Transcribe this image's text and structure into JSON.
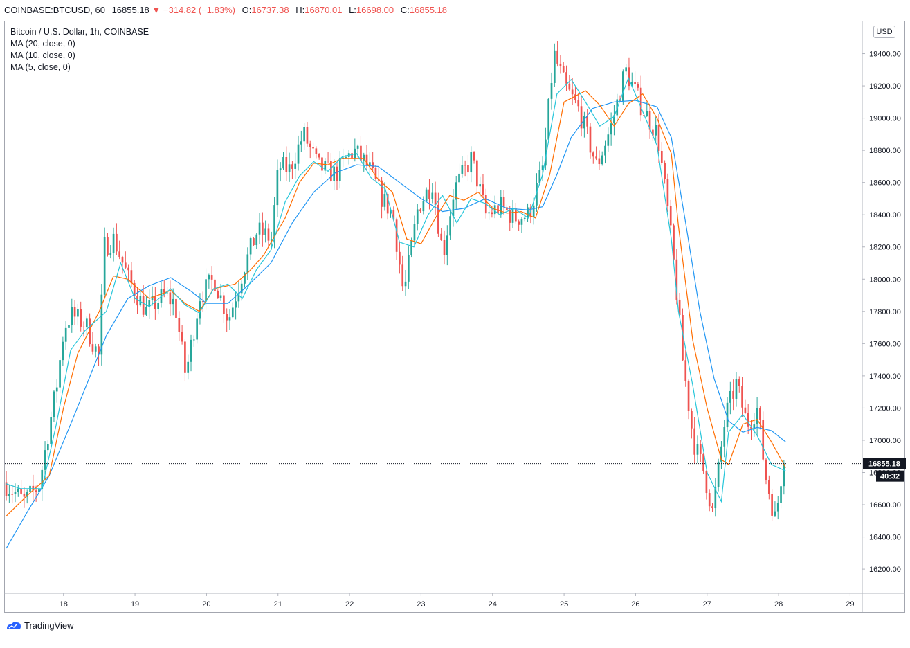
{
  "header": {
    "symbol": "COINBASE:BTCUSD, 60",
    "last": "16855.18",
    "change": "−314.82 (−1.83%)",
    "o_label": "O:",
    "o": "16737.38",
    "h_label": "H:",
    "h": "16870.01",
    "l_label": "L:",
    "l": "16698.00",
    "c_label": "C:",
    "c": "16855.18"
  },
  "legend": {
    "title": "Bitcoin / U.S. Dollar, 1h, COINBASE",
    "ma20": "MA (20, close, 0)",
    "ma10": "MA (10, close, 0)",
    "ma5": "MA (5, close, 0)"
  },
  "currency_badge": "USD",
  "price_label": "16855.18",
  "countdown": "40:32",
  "brand": "TradingView",
  "colors": {
    "up": "#26a69a",
    "down": "#ef5350",
    "ma20": "#2196f3",
    "ma10": "#ff6d00",
    "ma5": "#26c6da",
    "grid": "#f0f3fa",
    "axis": "#b2b5be"
  },
  "chart_data": {
    "type": "candlestick",
    "title": "Bitcoin / U.S. Dollar, 1h, COINBASE",
    "interval": "1h",
    "ylim": [
      16050,
      19600
    ],
    "y_ticks": [
      16200,
      16400,
      16600,
      16800,
      17000,
      17200,
      17400,
      17600,
      17800,
      18000,
      18200,
      18400,
      18600,
      18800,
      19000,
      19200,
      19400,
      19600
    ],
    "x_ticks": [
      "18",
      "19",
      "20",
      "21",
      "22",
      "23",
      "24",
      "25",
      "26",
      "27",
      "28",
      "29"
    ],
    "x_range_days": [
      17.18,
      29.17
    ],
    "current_price": 16855.18,
    "ma_series": [
      {
        "name": "MA (20, close, 0)",
        "color": "#2196f3",
        "points": [
          [
            17.2,
            16330
          ],
          [
            17.5,
            16560
          ],
          [
            17.8,
            16780
          ],
          [
            18.1,
            17100
          ],
          [
            18.4,
            17430
          ],
          [
            18.6,
            17650
          ],
          [
            18.9,
            17880
          ],
          [
            19.2,
            17960
          ],
          [
            19.5,
            18010
          ],
          [
            19.8,
            17920
          ],
          [
            20.0,
            17850
          ],
          [
            20.3,
            17850
          ],
          [
            20.6,
            17970
          ],
          [
            20.9,
            18100
          ],
          [
            21.2,
            18350
          ],
          [
            21.5,
            18540
          ],
          [
            21.8,
            18660
          ],
          [
            22.1,
            18710
          ],
          [
            22.4,
            18700
          ],
          [
            22.7,
            18600
          ],
          [
            23.0,
            18500
          ],
          [
            23.3,
            18420
          ],
          [
            23.6,
            18440
          ],
          [
            23.9,
            18500
          ],
          [
            24.2,
            18440
          ],
          [
            24.5,
            18430
          ],
          [
            24.7,
            18450
          ],
          [
            24.9,
            18650
          ],
          [
            25.1,
            18880
          ],
          [
            25.4,
            19060
          ],
          [
            25.7,
            19100
          ],
          [
            26.0,
            19110
          ],
          [
            26.3,
            19070
          ],
          [
            26.5,
            18880
          ],
          [
            26.7,
            18350
          ],
          [
            26.9,
            17800
          ],
          [
            27.1,
            17380
          ],
          [
            27.3,
            17120
          ],
          [
            27.5,
            17050
          ],
          [
            27.7,
            17080
          ],
          [
            27.9,
            17060
          ],
          [
            28.1,
            16990
          ]
        ]
      },
      {
        "name": "MA (10, close, 0)",
        "color": "#ff6d00",
        "points": [
          [
            17.2,
            16530
          ],
          [
            17.5,
            16660
          ],
          [
            17.8,
            16780
          ],
          [
            18.0,
            17200
          ],
          [
            18.2,
            17540
          ],
          [
            18.5,
            17800
          ],
          [
            18.7,
            18020
          ],
          [
            18.9,
            18000
          ],
          [
            19.2,
            17880
          ],
          [
            19.5,
            17930
          ],
          [
            19.7,
            17850
          ],
          [
            19.9,
            17800
          ],
          [
            20.1,
            17940
          ],
          [
            20.4,
            17970
          ],
          [
            20.6,
            18050
          ],
          [
            20.8,
            18150
          ],
          [
            21.1,
            18380
          ],
          [
            21.3,
            18600
          ],
          [
            21.5,
            18720
          ],
          [
            21.7,
            18710
          ],
          [
            21.9,
            18750
          ],
          [
            22.2,
            18750
          ],
          [
            22.4,
            18620
          ],
          [
            22.6,
            18540
          ],
          [
            22.8,
            18250
          ],
          [
            23.0,
            18220
          ],
          [
            23.2,
            18380
          ],
          [
            23.4,
            18520
          ],
          [
            23.6,
            18490
          ],
          [
            23.8,
            18540
          ],
          [
            24.0,
            18440
          ],
          [
            24.2,
            18410
          ],
          [
            24.4,
            18420
          ],
          [
            24.6,
            18380
          ],
          [
            24.8,
            18650
          ],
          [
            25.0,
            19100
          ],
          [
            25.3,
            19170
          ],
          [
            25.5,
            19080
          ],
          [
            25.7,
            18950
          ],
          [
            25.9,
            19090
          ],
          [
            26.1,
            19150
          ],
          [
            26.3,
            19000
          ],
          [
            26.5,
            18780
          ],
          [
            26.6,
            18330
          ],
          [
            26.8,
            17620
          ],
          [
            27.0,
            17200
          ],
          [
            27.2,
            16880
          ],
          [
            27.3,
            16850
          ],
          [
            27.5,
            17100
          ],
          [
            27.7,
            17130
          ],
          [
            27.9,
            16990
          ],
          [
            28.1,
            16830
          ]
        ]
      },
      {
        "name": "MA (5, close, 0)",
        "color": "#26c6da",
        "points": [
          [
            17.2,
            16730
          ],
          [
            17.4,
            16700
          ],
          [
            17.7,
            16700
          ],
          [
            17.9,
            17100
          ],
          [
            18.1,
            17560
          ],
          [
            18.3,
            17680
          ],
          [
            18.6,
            17800
          ],
          [
            18.8,
            18100
          ],
          [
            19.0,
            17880
          ],
          [
            19.2,
            17830
          ],
          [
            19.5,
            17940
          ],
          [
            19.7,
            17840
          ],
          [
            19.9,
            17790
          ],
          [
            20.1,
            17940
          ],
          [
            20.3,
            17970
          ],
          [
            20.5,
            17880
          ],
          [
            20.7,
            18060
          ],
          [
            20.9,
            18180
          ],
          [
            21.1,
            18480
          ],
          [
            21.3,
            18640
          ],
          [
            21.5,
            18730
          ],
          [
            21.7,
            18670
          ],
          [
            21.9,
            18760
          ],
          [
            22.1,
            18780
          ],
          [
            22.3,
            18630
          ],
          [
            22.5,
            18560
          ],
          [
            22.7,
            18230
          ],
          [
            22.9,
            18200
          ],
          [
            23.1,
            18400
          ],
          [
            23.3,
            18520
          ],
          [
            23.5,
            18350
          ],
          [
            23.7,
            18500
          ],
          [
            23.9,
            18470
          ],
          [
            24.1,
            18400
          ],
          [
            24.3,
            18440
          ],
          [
            24.5,
            18380
          ],
          [
            24.7,
            18650
          ],
          [
            24.9,
            19150
          ],
          [
            25.1,
            19240
          ],
          [
            25.3,
            19100
          ],
          [
            25.5,
            18950
          ],
          [
            25.7,
            19010
          ],
          [
            25.9,
            19250
          ],
          [
            26.1,
            19040
          ],
          [
            26.3,
            18830
          ],
          [
            26.5,
            18250
          ],
          [
            26.6,
            17800
          ],
          [
            26.8,
            17340
          ],
          [
            27.0,
            16800
          ],
          [
            27.2,
            16620
          ],
          [
            27.3,
            17050
          ],
          [
            27.5,
            17160
          ],
          [
            27.7,
            17030
          ],
          [
            27.9,
            16850
          ],
          [
            28.1,
            16810
          ]
        ]
      }
    ],
    "ohlc_anchors": [
      [
        17.2,
        16740
      ],
      [
        17.5,
        16620
      ],
      [
        17.7,
        16720
      ],
      [
        17.85,
        17100
      ],
      [
        17.95,
        17350
      ],
      [
        18.05,
        17700
      ],
      [
        18.15,
        17780
      ],
      [
        18.35,
        17720
      ],
      [
        18.55,
        17500
      ],
      [
        18.6,
        18200
      ],
      [
        18.75,
        18250
      ],
      [
        18.95,
        18000
      ],
      [
        19.2,
        17800
      ],
      [
        19.45,
        17900
      ],
      [
        19.6,
        17850
      ],
      [
        19.75,
        17400
      ],
      [
        19.95,
        17900
      ],
      [
        20.15,
        18000
      ],
      [
        20.35,
        17750
      ],
      [
        20.55,
        18050
      ],
      [
        20.75,
        18300
      ],
      [
        20.95,
        18250
      ],
      [
        21.05,
        18700
      ],
      [
        21.2,
        18680
      ],
      [
        21.4,
        18900
      ],
      [
        21.6,
        18700
      ],
      [
        21.85,
        18650
      ],
      [
        22.0,
        18750
      ],
      [
        22.1,
        18800
      ],
      [
        22.3,
        18700
      ],
      [
        22.5,
        18500
      ],
      [
        22.65,
        18400
      ],
      [
        22.8,
        17900
      ],
      [
        23.0,
        18450
      ],
      [
        23.2,
        18600
      ],
      [
        23.35,
        18150
      ],
      [
        23.5,
        18550
      ],
      [
        23.75,
        18750
      ],
      [
        23.95,
        18400
      ],
      [
        24.15,
        18450
      ],
      [
        24.35,
        18380
      ],
      [
        24.55,
        18400
      ],
      [
        24.75,
        18700
      ],
      [
        24.9,
        19400
      ],
      [
        25.05,
        19200
      ],
      [
        25.25,
        19050
      ],
      [
        25.5,
        18700
      ],
      [
        25.7,
        18950
      ],
      [
        25.9,
        19300
      ],
      [
        26.15,
        19050
      ],
      [
        26.35,
        18900
      ],
      [
        26.5,
        18400
      ],
      [
        26.6,
        18000
      ],
      [
        26.7,
        17500
      ],
      [
        26.85,
        17000
      ],
      [
        27.0,
        16800
      ],
      [
        27.12,
        16550
      ],
      [
        27.3,
        17150
      ],
      [
        27.45,
        17350
      ],
      [
        27.6,
        17100
      ],
      [
        27.75,
        17200
      ],
      [
        27.85,
        16800
      ],
      [
        28.0,
        16500
      ],
      [
        28.1,
        16855
      ]
    ]
  }
}
